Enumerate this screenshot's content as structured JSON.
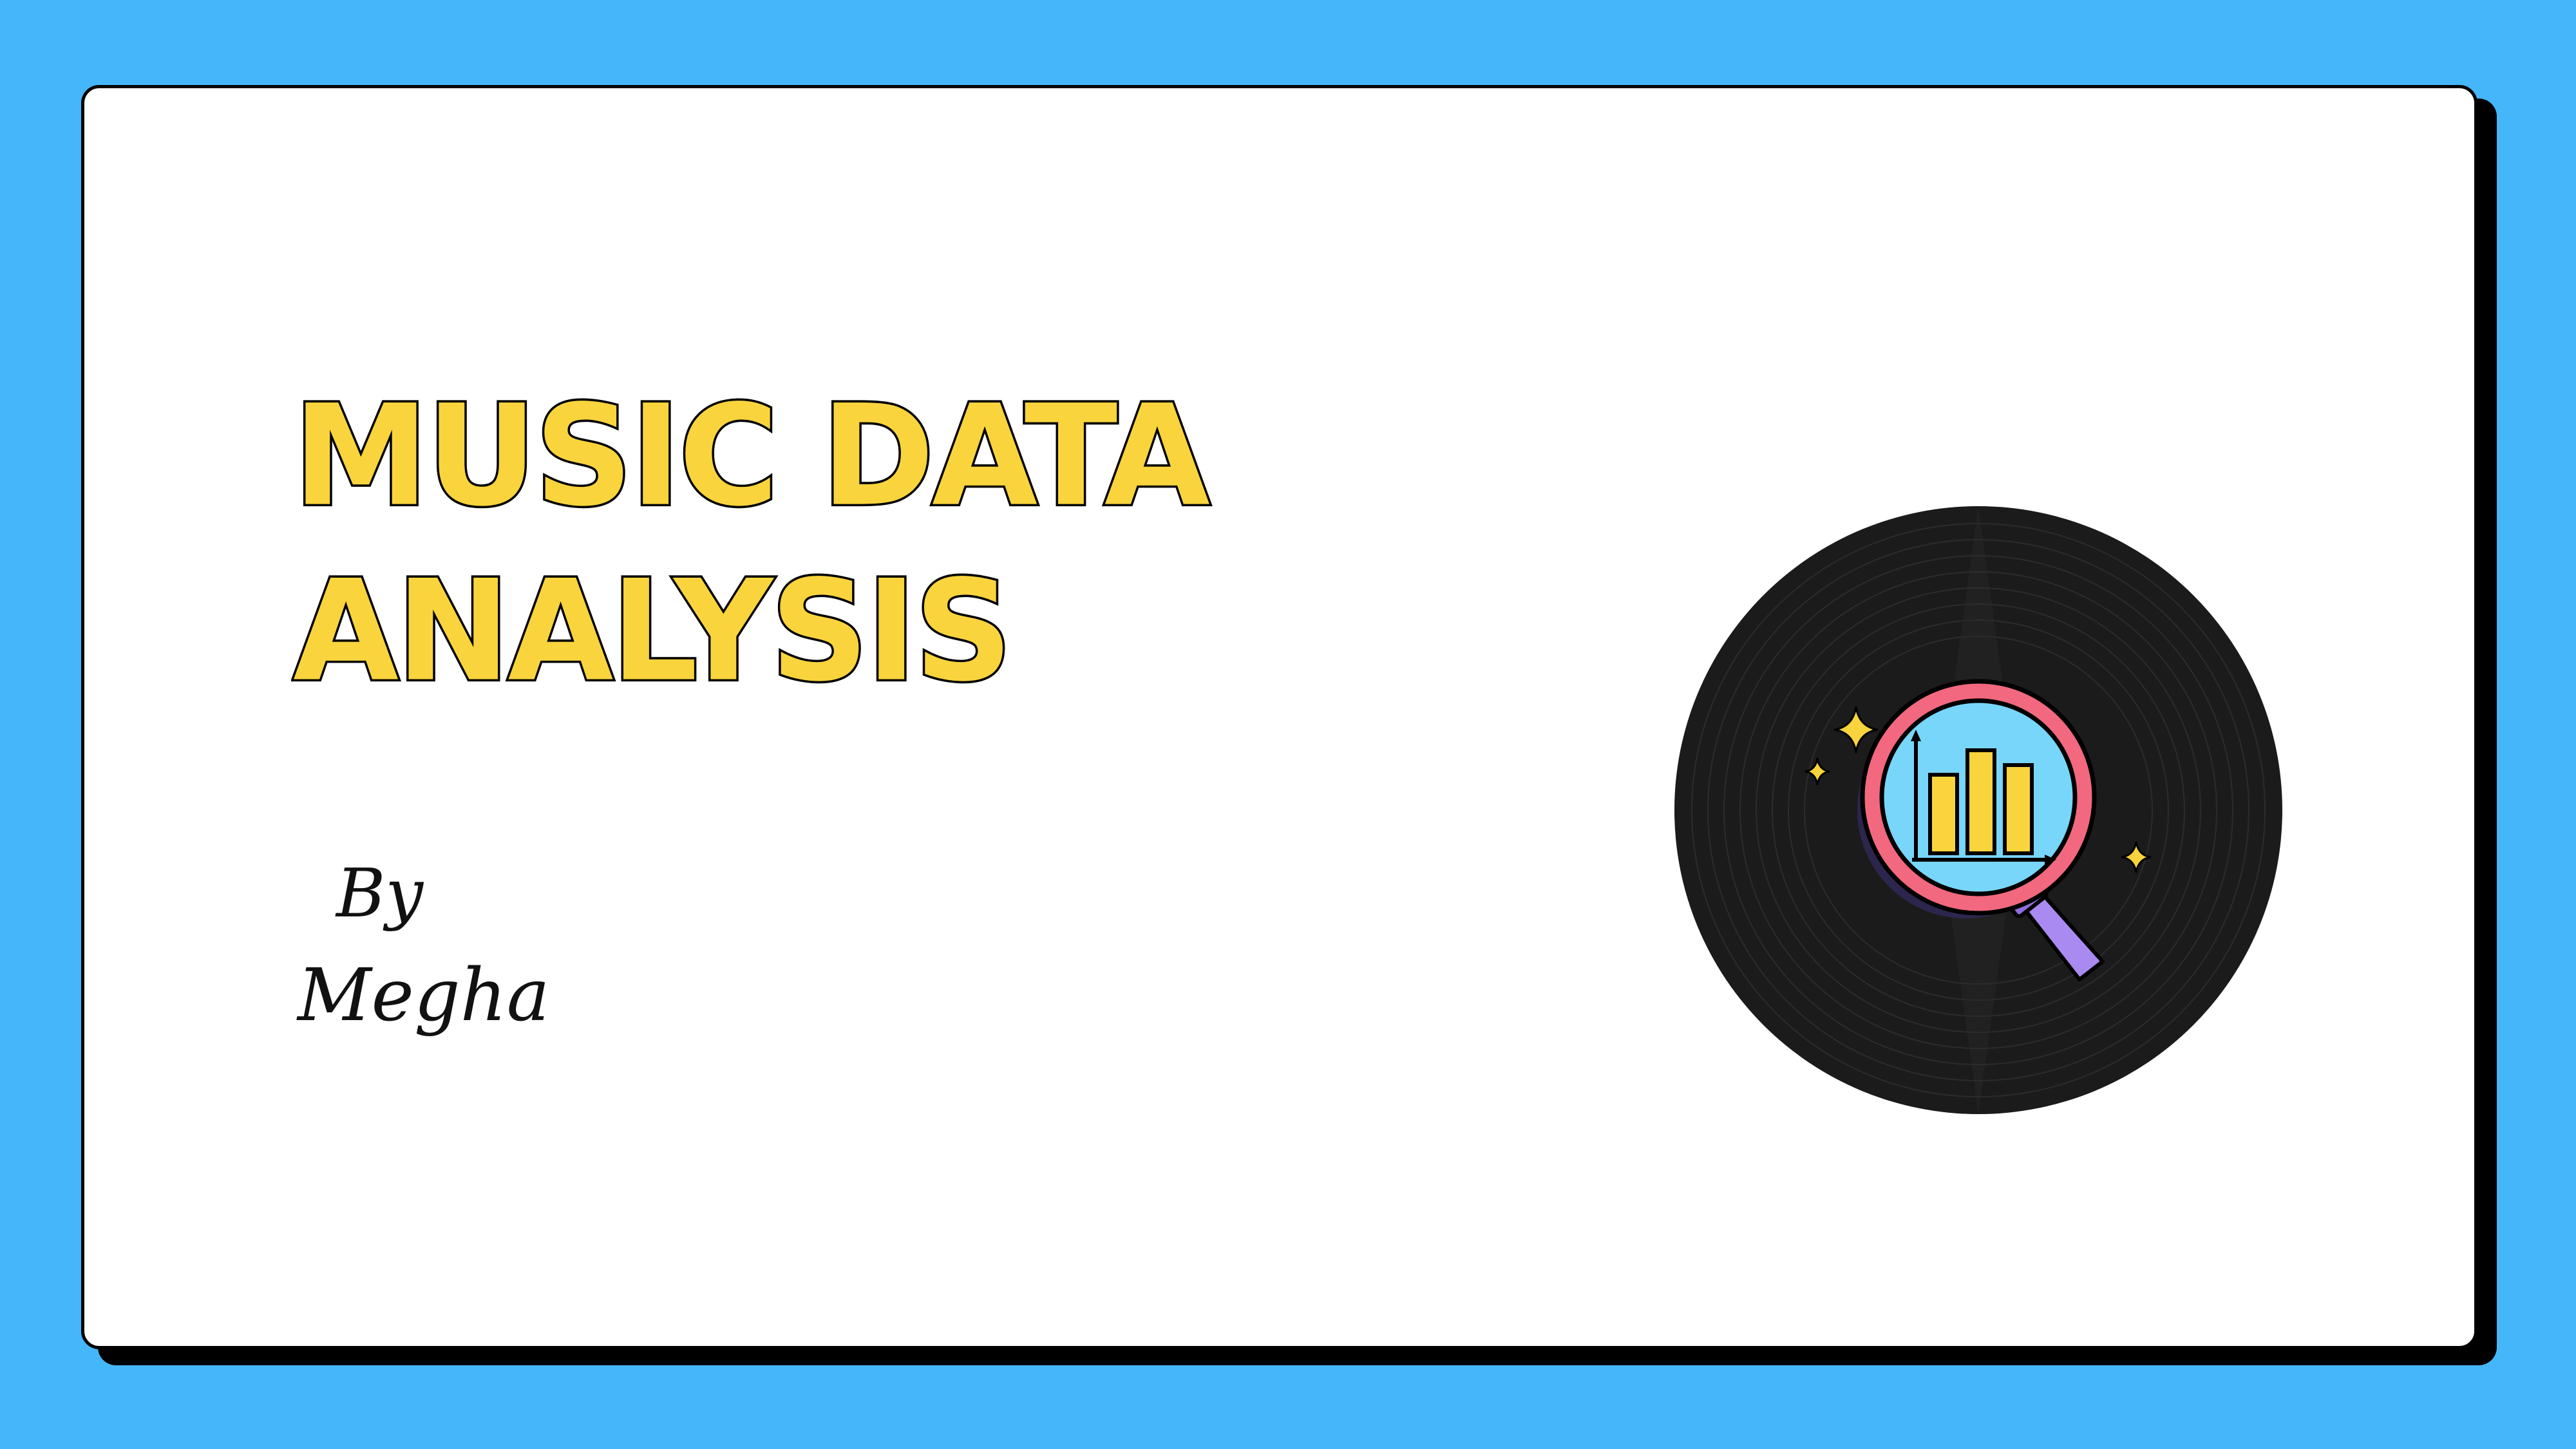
{
  "slide": {
    "title_line1": "MUSIC DATA",
    "title_line2": "ANALYSIS",
    "byline_by": "By",
    "byline_name": "Megha"
  },
  "colors": {
    "background": "#45b6fa",
    "card": "#ffffff",
    "title_fill": "#fad43c",
    "outline": "#000000",
    "record": "#1b1b1b",
    "lens_ring": "#f2687e",
    "lens_glass": "#78d6fa",
    "handle": "#a98af0",
    "bars": "#fad43c",
    "sparkle": "#fad43c"
  },
  "illustration": {
    "record": "vinyl-record-icon",
    "magnifier": "magnifying-glass-icon",
    "chart": "bar-chart-icon",
    "sparkles": "sparkle-icon"
  }
}
